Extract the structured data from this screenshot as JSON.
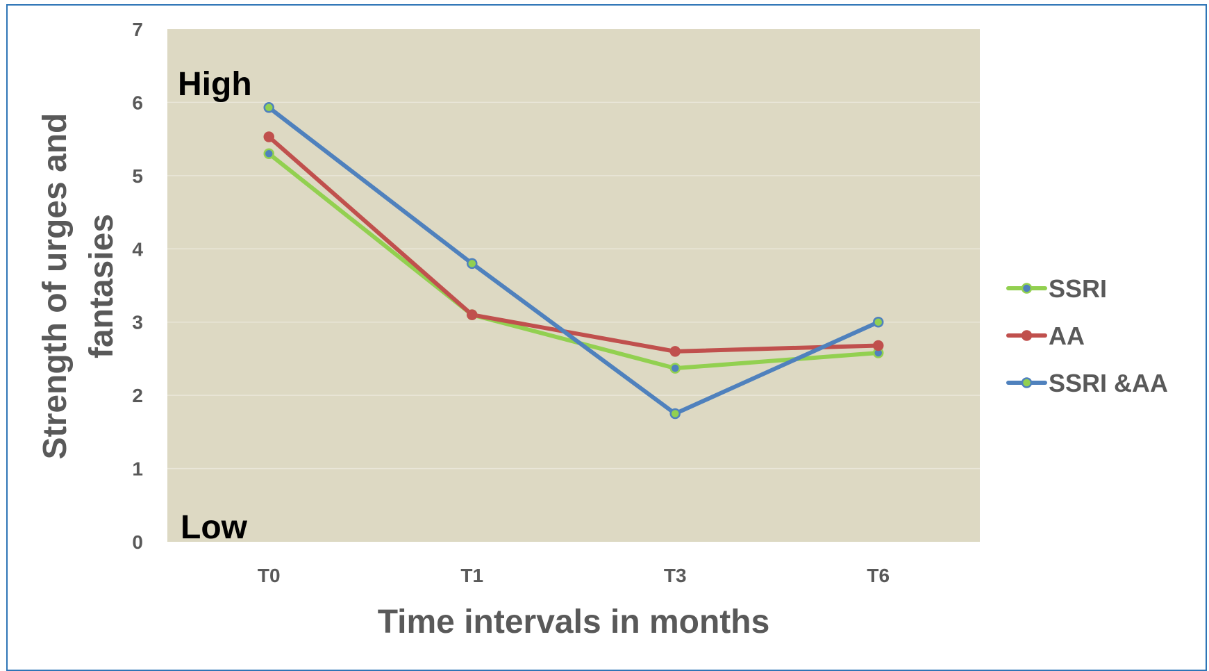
{
  "chart_data": {
    "type": "line",
    "categories": [
      "T0",
      "T1",
      "T3",
      "T6"
    ],
    "series": [
      {
        "name": "SSRI",
        "values": [
          5.3,
          3.1,
          2.37,
          2.58
        ],
        "color": "#92d050",
        "marker_fill": "#4f81bd",
        "marker_stroke": "#92d050"
      },
      {
        "name": "AA",
        "values": [
          5.53,
          3.1,
          2.6,
          2.68
        ],
        "color": "#c0504d",
        "marker_fill": "#c0504d",
        "marker_stroke": "#c0504d"
      },
      {
        "name": "SSRI &AA",
        "values": [
          5.93,
          3.8,
          1.75,
          3.0
        ],
        "color": "#4f81bd",
        "marker_fill": "#92d050",
        "marker_stroke": "#4f81bd"
      }
    ],
    "title": "",
    "xlabel": "Time intervals in months",
    "ylabel": "Strength of urges and fantasies",
    "ylabel_lines": [
      "Strength of urges and",
      "fantasies"
    ],
    "ylim": [
      0,
      7
    ],
    "yticks": [
      0,
      1,
      2,
      3,
      4,
      5,
      6,
      7
    ],
    "grid": true,
    "legend_position": "right",
    "plot_background": "#ddd9c3",
    "annotations": {
      "high": "High",
      "low": "Low"
    }
  }
}
